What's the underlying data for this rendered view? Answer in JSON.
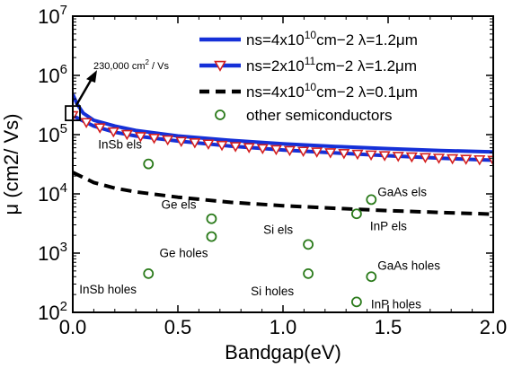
{
  "chart_data": {
    "type": "line",
    "xlabel": "Bandgap(eV)",
    "ylabel": "μ (cm2/ Vs)",
    "xlim": [
      0,
      2.0
    ],
    "ylim": [
      100,
      10000000
    ],
    "yscale": "log",
    "x_ticks": [
      "0.0",
      "0.5",
      "1.0",
      "1.5",
      "2.0"
    ],
    "y_ticks": [
      {
        "base": "10",
        "exp": "2"
      },
      {
        "base": "10",
        "exp": "3"
      },
      {
        "base": "10",
        "exp": "4"
      },
      {
        "base": "10",
        "exp": "5"
      },
      {
        "base": "10",
        "exp": "6"
      },
      {
        "base": "10",
        "exp": "7"
      }
    ],
    "series": [
      {
        "legend": {
          "a": "ns=4x10",
          "sup": "10",
          "b": "cm−2  λ=1.2μm"
        },
        "color": "#1530d8",
        "style": "solid",
        "x": [
          0,
          0.02,
          0.05,
          0.1,
          0.2,
          0.3,
          0.5,
          0.75,
          1.0,
          1.25,
          1.5,
          1.75,
          2.0
        ],
        "y": [
          480000,
          330000,
          230000,
          175000,
          140000,
          118000,
          95000,
          80000,
          70000,
          63000,
          58000,
          54000,
          51000
        ]
      },
      {
        "legend": {
          "a": "ns=2x10",
          "sup": "11",
          "b": "cm−2  λ=1.2μm"
        },
        "color": "#1530d8",
        "style": "solid",
        "marker": "triangle-down",
        "marker_color": "#d42020",
        "x": [
          0,
          0.05,
          0.1,
          0.2,
          0.3,
          0.5,
          0.75,
          1.0,
          1.25,
          1.5,
          1.75,
          2.0
        ],
        "y": [
          210000,
          170000,
          140000,
          110000,
          95000,
          78000,
          64000,
          55000,
          49000,
          44000,
          40000,
          37000
        ]
      },
      {
        "legend": {
          "a": "ns=4x10",
          "sup": "10",
          "b": "cm−2  λ=0.1μm"
        },
        "color": "#000000",
        "style": "dashed",
        "x": [
          0,
          0.1,
          0.2,
          0.3,
          0.5,
          0.75,
          1.0,
          1.25,
          1.5,
          1.75,
          2.0
        ],
        "y": [
          23000,
          15500,
          12500,
          10800,
          8800,
          7200,
          6300,
          5700,
          5200,
          4850,
          4550
        ]
      },
      {
        "legend": {
          "a": "other semiconductors"
        },
        "color": "#2a7a1a",
        "style": "marker-only",
        "marker": "circle-open",
        "points": [
          {
            "label": "InSb els",
            "x": 0.36,
            "y": 32000
          },
          {
            "label": "InSb holes",
            "x": 0.36,
            "y": 450
          },
          {
            "label": "Ge els",
            "x": 0.66,
            "y": 3800
          },
          {
            "label": "Ge holes",
            "x": 0.66,
            "y": 1900
          },
          {
            "label": "Si els",
            "x": 1.12,
            "y": 1400
          },
          {
            "label": "Si holes",
            "x": 1.12,
            "y": 450
          },
          {
            "label": "GaAs els",
            "x": 1.42,
            "y": 8000
          },
          {
            "label": "GaAs holes",
            "x": 1.42,
            "y": 400
          },
          {
            "label": "InP els",
            "x": 1.35,
            "y": 4600
          },
          {
            "label": "InP holes",
            "x": 1.35,
            "y": 150
          }
        ]
      }
    ],
    "annotation": {
      "text": "230,000 cm",
      "sup": "2",
      "suffix": " / Vs",
      "x": 0.0,
      "y": 230000
    },
    "legend_position": "top-right",
    "grid": false
  }
}
